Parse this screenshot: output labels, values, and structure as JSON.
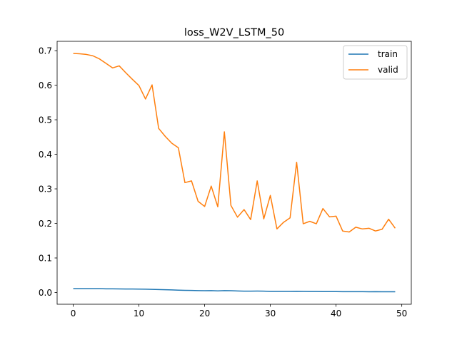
{
  "chart_data": {
    "type": "line",
    "title": "loss_W2V_LSTM_50",
    "xlabel": "",
    "ylabel": "",
    "xlim": [
      -2.45,
      51.45
    ],
    "ylim": [
      -0.034,
      0.727
    ],
    "x_ticks": [
      0,
      10,
      20,
      30,
      40,
      50
    ],
    "y_ticks": [
      0.0,
      0.1,
      0.2,
      0.3,
      0.4,
      0.5,
      0.6,
      0.7
    ],
    "y_tick_labels": [
      "0.0",
      "0.1",
      "0.2",
      "0.3",
      "0.4",
      "0.5",
      "0.6",
      "0.7"
    ],
    "grid": false,
    "legend_position": "top-right",
    "x": [
      0,
      1,
      2,
      3,
      4,
      5,
      6,
      7,
      8,
      9,
      10,
      11,
      12,
      13,
      14,
      15,
      16,
      17,
      18,
      19,
      20,
      21,
      22,
      23,
      24,
      25,
      26,
      27,
      28,
      29,
      30,
      31,
      32,
      33,
      34,
      35,
      36,
      37,
      38,
      39,
      40,
      41,
      42,
      43,
      44,
      45,
      46,
      47,
      48,
      49
    ],
    "series": [
      {
        "name": "train",
        "color": "#1f77b4",
        "values": [
          0.011,
          0.011,
          0.011,
          0.011,
          0.011,
          0.0105,
          0.0105,
          0.0103,
          0.0102,
          0.01,
          0.0098,
          0.0095,
          0.009,
          0.0085,
          0.008,
          0.0075,
          0.0068,
          0.0062,
          0.006,
          0.0055,
          0.0052,
          0.0054,
          0.0048,
          0.0055,
          0.0052,
          0.0045,
          0.004,
          0.004,
          0.0041,
          0.0038,
          0.0032,
          0.003,
          0.0031,
          0.003,
          0.0034,
          0.003,
          0.0029,
          0.0028,
          0.0026,
          0.0025,
          0.0026,
          0.0024,
          0.0024,
          0.0023,
          0.0023,
          0.0022,
          0.0024,
          0.0021,
          0.002,
          0.002
        ]
      },
      {
        "name": "valid",
        "color": "#ff7f0e",
        "values": [
          0.692,
          0.691,
          0.689,
          0.685,
          0.676,
          0.663,
          0.65,
          0.656,
          0.636,
          0.617,
          0.599,
          0.56,
          0.601,
          0.475,
          0.452,
          0.432,
          0.419,
          0.318,
          0.323,
          0.264,
          0.249,
          0.308,
          0.248,
          0.465,
          0.252,
          0.218,
          0.24,
          0.211,
          0.323,
          0.213,
          0.281,
          0.184,
          0.203,
          0.216,
          0.377,
          0.199,
          0.206,
          0.199,
          0.243,
          0.219,
          0.221,
          0.178,
          0.175,
          0.189,
          0.184,
          0.186,
          0.178,
          0.183,
          0.212,
          0.186
        ]
      }
    ]
  }
}
